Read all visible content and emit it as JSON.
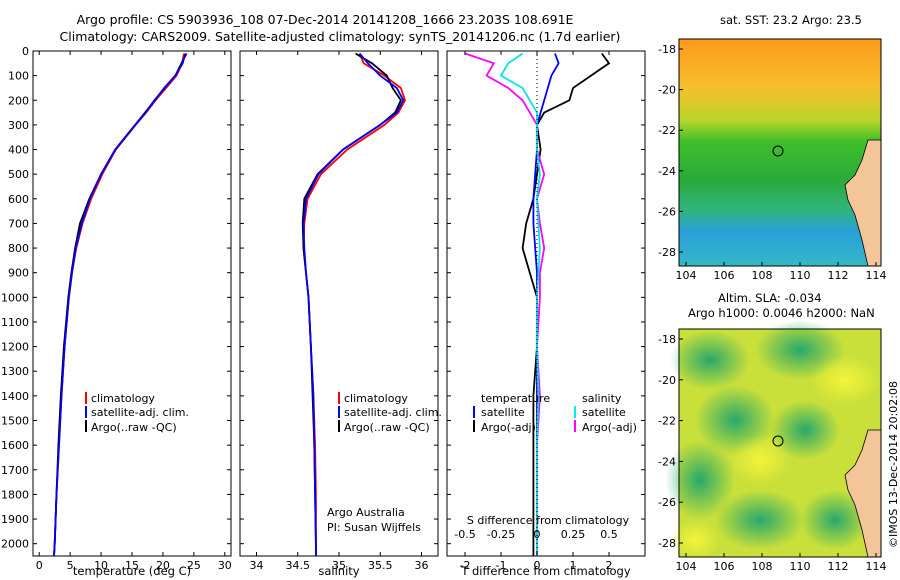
{
  "titles": {
    "line1": "Argo profile: CS 5903936_108 07-Dec-2014 20141208_1666 23.203S 108.691E",
    "line2": "Climatology: CARS2009. Satellite-adjusted climatology: synTS_20141206.nc (1.7d earlier)"
  },
  "credit": "©IMOS 13-Dec-2014 20:02:08",
  "maps": {
    "sst": {
      "title": "sat. SST: 23.2  Argo: 23.5"
    },
    "sla": {
      "title_line1": "Altim. SLA: -0.034",
      "title_line2": "Argo h1000: 0.0046 h2000: NaN"
    },
    "yticks": [
      "-18",
      "-20",
      "-22",
      "-24",
      "-26",
      "-28"
    ],
    "xticks": [
      "104",
      "106",
      "108",
      "110",
      "112",
      "114"
    ]
  },
  "colors": {
    "climatology": "#ff0000",
    "satellite": "#0000ff",
    "argo": "#000000",
    "cyan": "#00e5e5",
    "magenta": "#ff00ff"
  },
  "chart_data": [
    {
      "type": "line",
      "xlabel": "temperature (deg C)",
      "ylabel": "",
      "xlim": [
        -1,
        31
      ],
      "ylim": [
        2050,
        0
      ],
      "xticks": [
        "0",
        "5",
        "10",
        "15",
        "20",
        "25",
        "30"
      ],
      "yticks": [
        "0",
        "100",
        "200",
        "300",
        "400",
        "500",
        "600",
        "700",
        "800",
        "900",
        "1000",
        "1100",
        "1200",
        "1300",
        "1400",
        "1500",
        "1600",
        "1700",
        "1800",
        "1900",
        "2000"
      ],
      "legend": [
        "climatology",
        "satellite-adj. clim.",
        "Argo(..raw -QC)"
      ],
      "depth": [
        10,
        50,
        100,
        150,
        200,
        250,
        300,
        400,
        500,
        600,
        700,
        800,
        900,
        1000,
        1200,
        1400,
        1600,
        1800,
        2000,
        2050
      ],
      "series": [
        {
          "name": "climatology",
          "values": [
            23.4,
            23.1,
            22.2,
            20.5,
            18.8,
            17.3,
            15.6,
            12.4,
            10.2,
            8.4,
            7.0,
            6.0,
            5.3,
            4.8,
            4.1,
            3.6,
            3.2,
            2.8,
            2.5,
            2.4
          ]
        },
        {
          "name": "satellite-adj. clim.",
          "values": [
            23.6,
            23.2,
            22.0,
            20.3,
            18.6,
            17.2,
            15.5,
            12.3,
            10.0,
            8.2,
            6.9,
            5.9,
            5.3,
            4.8,
            4.1,
            3.6,
            3.2,
            2.8,
            2.5,
            2.4
          ]
        },
        {
          "name": "Argo(..raw -QC)",
          "values": [
            23.8,
            23.0,
            22.0,
            20.2,
            18.7,
            17.1,
            15.5,
            12.3,
            10.0,
            8.1,
            6.6,
            5.8,
            5.2,
            4.7,
            4.0,
            3.5,
            3.1,
            2.8,
            2.5,
            2.4
          ]
        }
      ]
    },
    {
      "type": "line",
      "xlabel": "salinity",
      "xlim": [
        33.8,
        36.2
      ],
      "ylim": [
        2050,
        0
      ],
      "xticks": [
        "34",
        "34.5",
        "35",
        "35.5",
        "36"
      ],
      "legend": [
        "climatology",
        "satellite-adj. clim.",
        "Argo(..raw -QC)"
      ],
      "annotation": [
        "Argo Australia",
        "PI: Susan Wijffels"
      ],
      "depth": [
        10,
        50,
        100,
        150,
        200,
        250,
        300,
        400,
        500,
        600,
        700,
        800,
        900,
        1000,
        1200,
        1400,
        1600,
        1800,
        2000,
        2050
      ],
      "series": [
        {
          "name": "climatology",
          "values": [
            35.25,
            35.3,
            35.55,
            35.75,
            35.8,
            35.72,
            35.55,
            35.1,
            34.78,
            34.62,
            34.58,
            34.57,
            34.6,
            34.63,
            34.66,
            34.69,
            34.71,
            34.72,
            34.72,
            34.72
          ]
        },
        {
          "name": "satellite-adj. clim.",
          "values": [
            35.25,
            35.35,
            35.5,
            35.7,
            35.78,
            35.7,
            35.5,
            35.05,
            34.75,
            34.6,
            34.57,
            34.58,
            34.6,
            34.63,
            34.66,
            34.69,
            34.7,
            34.71,
            34.72,
            34.72
          ]
        },
        {
          "name": "Argo(..raw -QC)",
          "values": [
            35.2,
            35.4,
            35.58,
            35.65,
            35.75,
            35.68,
            35.5,
            35.05,
            34.74,
            34.58,
            34.56,
            34.57,
            34.6,
            34.63,
            34.66,
            34.68,
            34.7,
            34.71,
            34.72,
            34.72
          ]
        }
      ]
    },
    {
      "type": "line",
      "xlabel": "T difference from climatology",
      "xlabel_top": "S difference from climatology",
      "xlim": [
        -2.5,
        3.0
      ],
      "ylim": [
        2050,
        0
      ],
      "xticks": [
        "-2",
        "-1",
        "0",
        "1",
        "2"
      ],
      "xticks_s": [
        "-0.5",
        "-0.25",
        "0",
        "0.25",
        "0.5"
      ],
      "legend_temperature": {
        "title": "temperature",
        "items": [
          "satellite",
          "Argo(-adj)"
        ]
      },
      "legend_salinity": {
        "title": "salinity",
        "items": [
          "satellite",
          "Argo(-adj)"
        ]
      },
      "depth": [
        10,
        50,
        100,
        150,
        200,
        250,
        300,
        400,
        500,
        600,
        700,
        800,
        900,
        1000,
        1200,
        1400,
        1600,
        1800,
        2000,
        2050
      ],
      "series": [
        {
          "name": "T satellite",
          "values": [
            0.5,
            0.6,
            0.4,
            0.3,
            0.2,
            0.1,
            0.0,
            0.0,
            -0.05,
            -0.1,
            -0.1,
            -0.05,
            0.0,
            0.0,
            0.0,
            0.0,
            0.0,
            0.0,
            0.0,
            0.0
          ]
        },
        {
          "name": "T Argo(-adj)",
          "values": [
            1.8,
            2.0,
            1.5,
            1.0,
            0.9,
            0.2,
            0.0,
            0.1,
            0.0,
            -0.1,
            -0.3,
            -0.4,
            -0.2,
            0.0,
            0.0,
            -0.1,
            -0.1,
            -0.1,
            -0.1,
            -0.1
          ]
        },
        {
          "name": "S satellite",
          "values": [
            -0.1,
            -0.2,
            -0.25,
            -0.1,
            -0.05,
            0.0,
            0.0,
            0.0,
            0.02,
            0.0,
            0.01,
            0.02,
            0.01,
            0.0,
            0.0,
            0.01,
            0.0,
            0.0,
            0.0,
            0.0
          ]
        },
        {
          "name": "S Argo(-adj)",
          "values": [
            -0.5,
            -0.3,
            -0.35,
            -0.2,
            -0.1,
            -0.05,
            0.0,
            0.0,
            0.05,
            0.0,
            0.02,
            0.05,
            0.02,
            0.02,
            0.0,
            0.02,
            0.0,
            0.0,
            0.0,
            0.0
          ]
        }
      ]
    }
  ]
}
